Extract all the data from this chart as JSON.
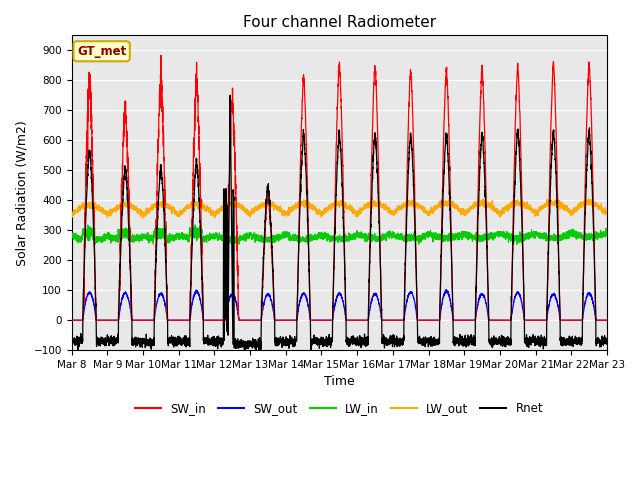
{
  "title": "Four channel Radiometer",
  "xlabel": "Time",
  "ylabel": "Solar Radiation (W/m2)",
  "ylim": [
    -100,
    950
  ],
  "yticks": [
    -100,
    0,
    100,
    200,
    300,
    400,
    500,
    600,
    700,
    800,
    900
  ],
  "x_tick_labels": [
    "Mar 8",
    "Mar 9",
    "Mar 10",
    "Mar 11",
    "Mar 12",
    "Mar 13",
    "Mar 14",
    "Mar 15",
    "Mar 16",
    "Mar 17",
    "Mar 18",
    "Mar 19",
    "Mar 20",
    "Mar 21",
    "Mar 22",
    "Mar 23"
  ],
  "station_label": "GT_met",
  "colors": {
    "SW_in": "#ff0000",
    "SW_out": "#0000ff",
    "LW_in": "#00cc00",
    "LW_out": "#ffaa00",
    "Rnet": "#000000"
  },
  "bg_color": "#e8e8e8",
  "fig_bg": "#ffffff",
  "n_days": 16,
  "pts_per_day": 288,
  "day_peaks_sw": [
    800,
    700,
    800,
    800,
    720,
    420,
    810,
    855,
    845,
    835,
    835,
    835,
    845,
    855,
    855,
    855
  ],
  "day_peaks_rnet": [
    570,
    510,
    510,
    530,
    450,
    450,
    620,
    620,
    620,
    620,
    620,
    620,
    630,
    630,
    630,
    640
  ]
}
